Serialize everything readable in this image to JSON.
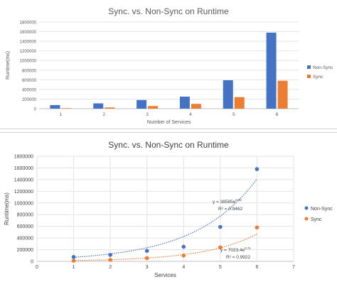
{
  "chart_data": [
    {
      "type": "bar",
      "title": "Sync. vs. Non-Sync on Runtime",
      "xlabel": "Number of Services",
      "ylabel": "Runtime(ms)",
      "ylim": [
        0,
        1800000
      ],
      "yticks": [
        "1800000",
        "1600000",
        "1400000",
        "1200000",
        "1000000",
        "800000",
        "600000",
        "400000",
        "200000",
        "0"
      ],
      "categories": [
        "1",
        "2",
        "3",
        "4",
        "5",
        "6"
      ],
      "grid": true,
      "legend_position": "right",
      "series": [
        {
          "name": "Non-Sync",
          "color": "#4472c4",
          "values": [
            75000,
            110000,
            180000,
            250000,
            590000,
            1580000
          ]
        },
        {
          "name": "Sync",
          "color": "#ed7d31",
          "values": [
            10000,
            25000,
            55000,
            100000,
            240000,
            580000
          ]
        }
      ]
    },
    {
      "type": "scatter",
      "title": "Sync. vs. Non-Sync on  Runtime",
      "xlabel": "Services",
      "ylabel": "Runtime(ms)",
      "xlim": [
        0,
        7
      ],
      "ylim": [
        0,
        1800000
      ],
      "xticks": [
        "0",
        "1",
        "2",
        "3",
        "4",
        "5",
        "6",
        "7"
      ],
      "yticks": [
        "1800000",
        "1600000",
        "1400000",
        "1200000",
        "1000000",
        "800000",
        "600000",
        "400000",
        "200000",
        "0"
      ],
      "grid": true,
      "legend_position": "right",
      "series": [
        {
          "name": "Non-Sync",
          "color": "#4472c4",
          "x": [
            1,
            2,
            3,
            4,
            5,
            6
          ],
          "y": [
            75000,
            110000,
            180000,
            250000,
            590000,
            1580000
          ],
          "trendline": {
            "equation": "y = 38585e",
            "exponent": "0.6x",
            "r2": "R² = 0.9462",
            "a": 38585,
            "b": 0.6
          }
        },
        {
          "name": "Sync",
          "color": "#ed7d31",
          "x": [
            1,
            2,
            3,
            4,
            5,
            6
          ],
          "y": [
            10000,
            25000,
            55000,
            100000,
            240000,
            580000
          ],
          "trendline": {
            "equation": "y = 7023.4e",
            "exponent": "0.7x",
            "r2": "R² = 0.9922",
            "a": 7023.4,
            "b": 0.7
          }
        }
      ]
    }
  ]
}
